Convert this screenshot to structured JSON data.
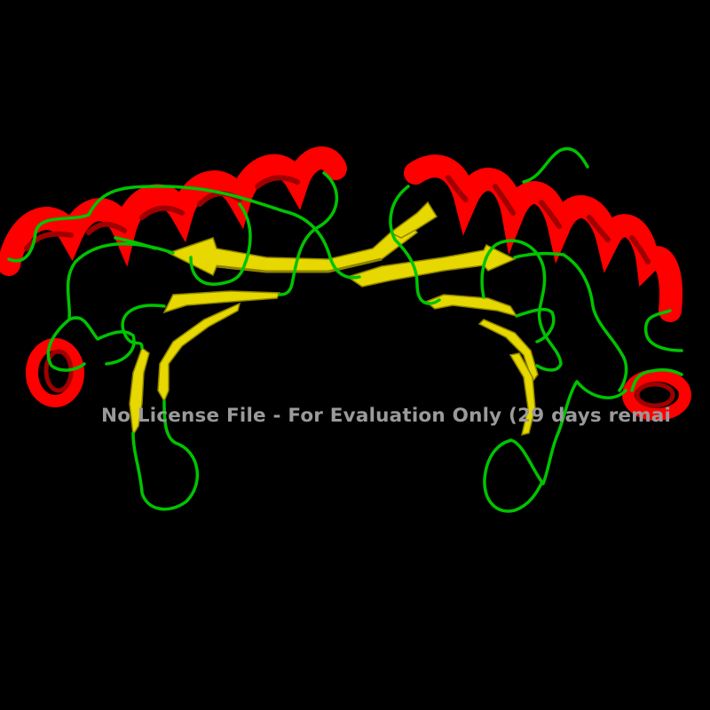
{
  "scene": {
    "subject": "protein cartoon rendering (dimer)",
    "background_color": "#000000",
    "colors": {
      "helix": "#ff0000",
      "helix_dark": "#a00000",
      "sheet": "#e6d800",
      "sheet_dark": "#8f8400",
      "loop": "#00c400"
    }
  },
  "watermark": {
    "text": "No License File - For Evaluation Only (29 days remai",
    "color": "#9a9a9a"
  }
}
